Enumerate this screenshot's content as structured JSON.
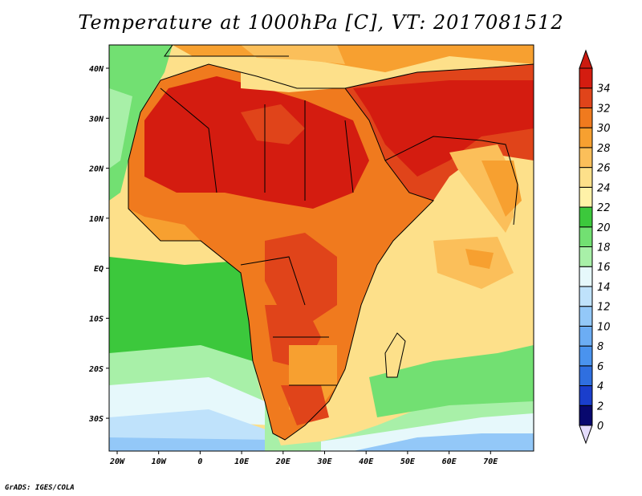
{
  "title": "Temperature at 1000hPa [C], VT: 2017081512",
  "credit": "GrADS: IGES/COLA",
  "map": {
    "lon_ticks": [
      "20W",
      "10W",
      "0",
      "10E",
      "20E",
      "30E",
      "40E",
      "50E",
      "60E",
      "70E"
    ],
    "lat_ticks": [
      "40N",
      "30N",
      "20N",
      "10N",
      "EQ",
      "10S",
      "20S",
      "30S"
    ]
  },
  "colorbar": {
    "levels": [
      "0",
      "2",
      "4",
      "6",
      "8",
      "10",
      "12",
      "14",
      "16",
      "18",
      "20",
      "22",
      "24",
      "26",
      "28",
      "30",
      "32",
      "34"
    ],
    "colors": [
      "#08086e",
      "#1a3ecc",
      "#2f6fe0",
      "#4a93ee",
      "#6cadf4",
      "#93c8f8",
      "#bfe2fb",
      "#e6f8fb",
      "#a8f0a8",
      "#72e072",
      "#3cc83c",
      "#fff2a8",
      "#fde08a",
      "#fbbf5a",
      "#f7a030",
      "#f07a1e",
      "#e0441a",
      "#d41c10"
    ],
    "over_color": "#cc1a10",
    "under_color": "#e4dcfc"
  }
}
